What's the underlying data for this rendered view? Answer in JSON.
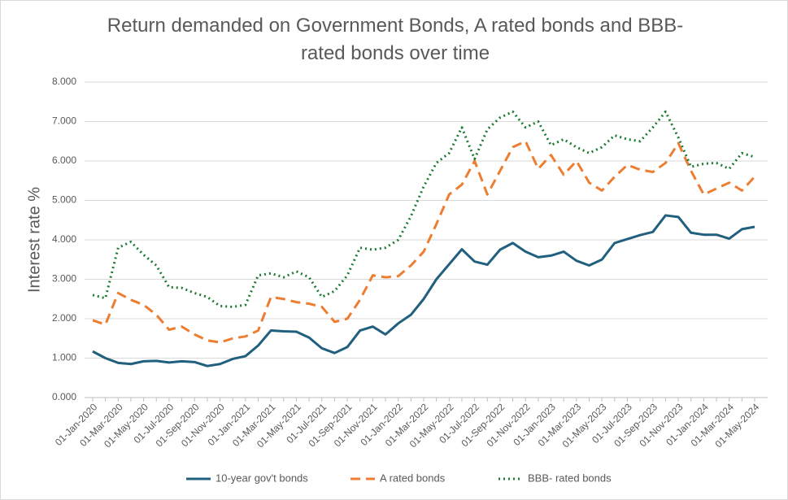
{
  "chart_data": {
    "type": "line",
    "title": "Return demanded on Government Bonds, A rated bonds and BBB-rated bonds over time",
    "ylabel": "Interest rate %",
    "categories": [
      "01-Jan-2020",
      null,
      "01-Mar-2020",
      null,
      "01-May-2020",
      null,
      "01-Jul-2020",
      null,
      "01-Sep-2020",
      null,
      "01-Nov-2020",
      null,
      "01-Jan-2021",
      null,
      "01-Mar-2021",
      null,
      "01-May-2021",
      null,
      "01-Jul-2021",
      null,
      "01-Sep-2021",
      null,
      "01-Nov-2021",
      null,
      "01-Jan-2022",
      null,
      "01-Mar-2022",
      null,
      "01-May-2022",
      null,
      "01-Jul-2022",
      null,
      "01-Sep-2022",
      null,
      "01-Nov-2022",
      null,
      "01-Jan-2023",
      null,
      "01-Mar-2023",
      null,
      "01-May-2023",
      null,
      "01-Jul-2023",
      null,
      "01-Sep-2023",
      null,
      "01-Nov-2023",
      null,
      "01-Jan-2024",
      null,
      "01-Mar-2024",
      null,
      "01-May-2024"
    ],
    "series": [
      {
        "name": "10-year gov't bonds",
        "color": "#215f7e",
        "dash": "solid",
        "values": [
          1.17,
          1.0,
          0.88,
          0.85,
          0.92,
          0.93,
          0.89,
          0.92,
          0.9,
          0.8,
          0.85,
          0.98,
          1.05,
          1.32,
          1.7,
          1.68,
          1.67,
          1.52,
          1.25,
          1.13,
          1.28,
          1.7,
          1.8,
          1.6,
          1.88,
          2.1,
          2.5,
          3.0,
          3.38,
          3.76,
          3.45,
          3.37,
          3.75,
          3.92,
          3.7,
          3.56,
          3.6,
          3.7,
          3.47,
          3.35,
          3.5,
          3.92,
          4.02,
          4.12,
          4.2,
          4.62,
          4.58,
          4.18,
          4.13,
          4.13,
          4.03,
          4.27,
          4.33
        ]
      },
      {
        "name": "A rated bonds",
        "color": "#ed7d31",
        "dash": "dashed",
        "values": [
          1.96,
          1.85,
          2.65,
          2.48,
          2.35,
          2.1,
          1.72,
          1.8,
          1.6,
          1.45,
          1.4,
          1.5,
          1.55,
          1.7,
          2.55,
          2.5,
          2.42,
          2.38,
          2.3,
          1.92,
          2.0,
          2.48,
          3.1,
          3.05,
          3.08,
          3.35,
          3.7,
          4.4,
          5.15,
          5.4,
          6.0,
          5.15,
          5.75,
          6.35,
          6.5,
          5.8,
          6.15,
          5.65,
          6.0,
          5.45,
          5.25,
          5.6,
          5.9,
          5.78,
          5.72,
          5.95,
          6.45,
          5.75,
          5.15,
          5.3,
          5.45,
          5.25,
          5.6
        ]
      },
      {
        "name": "BBB- rated bonds",
        "color": "#1e7a33",
        "dash": "dotted",
        "values": [
          2.6,
          2.52,
          3.8,
          3.95,
          3.62,
          3.35,
          2.8,
          2.78,
          2.65,
          2.55,
          2.32,
          2.3,
          2.35,
          3.1,
          3.15,
          3.05,
          3.2,
          3.05,
          2.55,
          2.7,
          3.1,
          3.8,
          3.75,
          3.8,
          4.0,
          4.6,
          5.35,
          5.95,
          6.2,
          6.85,
          6.05,
          6.8,
          7.1,
          7.25,
          6.85,
          7.0,
          6.4,
          6.55,
          6.35,
          6.2,
          6.35,
          6.65,
          6.55,
          6.5,
          6.85,
          7.25,
          6.6,
          5.85,
          5.93,
          5.95,
          5.8,
          6.2,
          6.1
        ]
      }
    ],
    "ylim": [
      0,
      8
    ],
    "yticks": [
      {
        "value": 0,
        "label": "0.000"
      },
      {
        "value": 1,
        "label": "1.000"
      },
      {
        "value": 2,
        "label": "2.000"
      },
      {
        "value": 3,
        "label": "3.000"
      },
      {
        "value": 4,
        "label": "4.000"
      },
      {
        "value": 5,
        "label": "5.000"
      },
      {
        "value": 6,
        "label": "6.000"
      },
      {
        "value": 7,
        "label": "7.000"
      },
      {
        "value": 8,
        "label": "8.000"
      }
    ],
    "grid": true,
    "legend": "bottom"
  }
}
